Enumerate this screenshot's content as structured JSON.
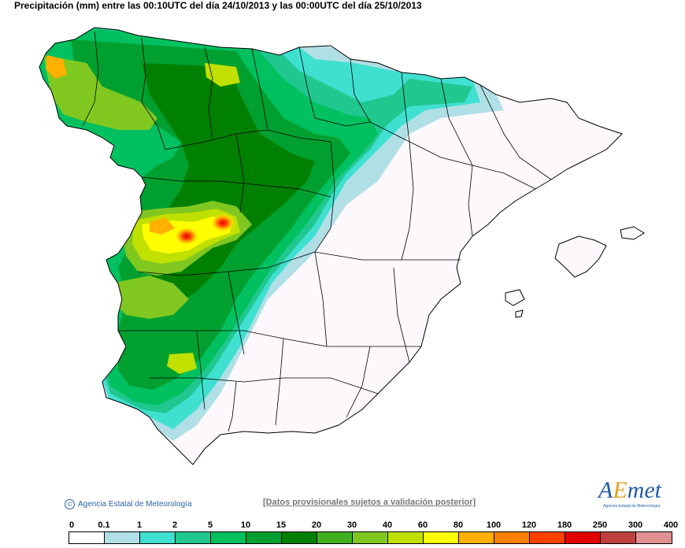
{
  "title": "Precipitación (mm) entre las 00:10UTC del día 24/10/2013 y las 00:00UTC del día 25/10/2013",
  "credit": "Agencia Estatal de Meteorología",
  "disclaimer": "[Datos provisionales sujetos a validación posterior]",
  "logo": {
    "word_a": "A",
    "word_e": "E",
    "word_rest": "met",
    "sub": "Agencia Estatal de Meteorología"
  },
  "legend": {
    "labels": [
      "0",
      "0.1",
      "1",
      "2",
      "5",
      "10",
      "15",
      "20",
      "30",
      "40",
      "60",
      "80",
      "100",
      "120",
      "180",
      "250",
      "300",
      "400"
    ],
    "colors": [
      "#ffffff",
      "#b0e0e6",
      "#40e0d0",
      "#20c890",
      "#00c060",
      "#00a030",
      "#008000",
      "#40b020",
      "#80c820",
      "#c0e000",
      "#ffff00",
      "#ffb000",
      "#ff8000",
      "#ff4000",
      "#e00000",
      "#c04040",
      "#e09090",
      "#f0c8c8"
    ]
  },
  "colors": {
    "land": "#fcf8fc",
    "sea": "#ffffff",
    "border": "#000000"
  }
}
